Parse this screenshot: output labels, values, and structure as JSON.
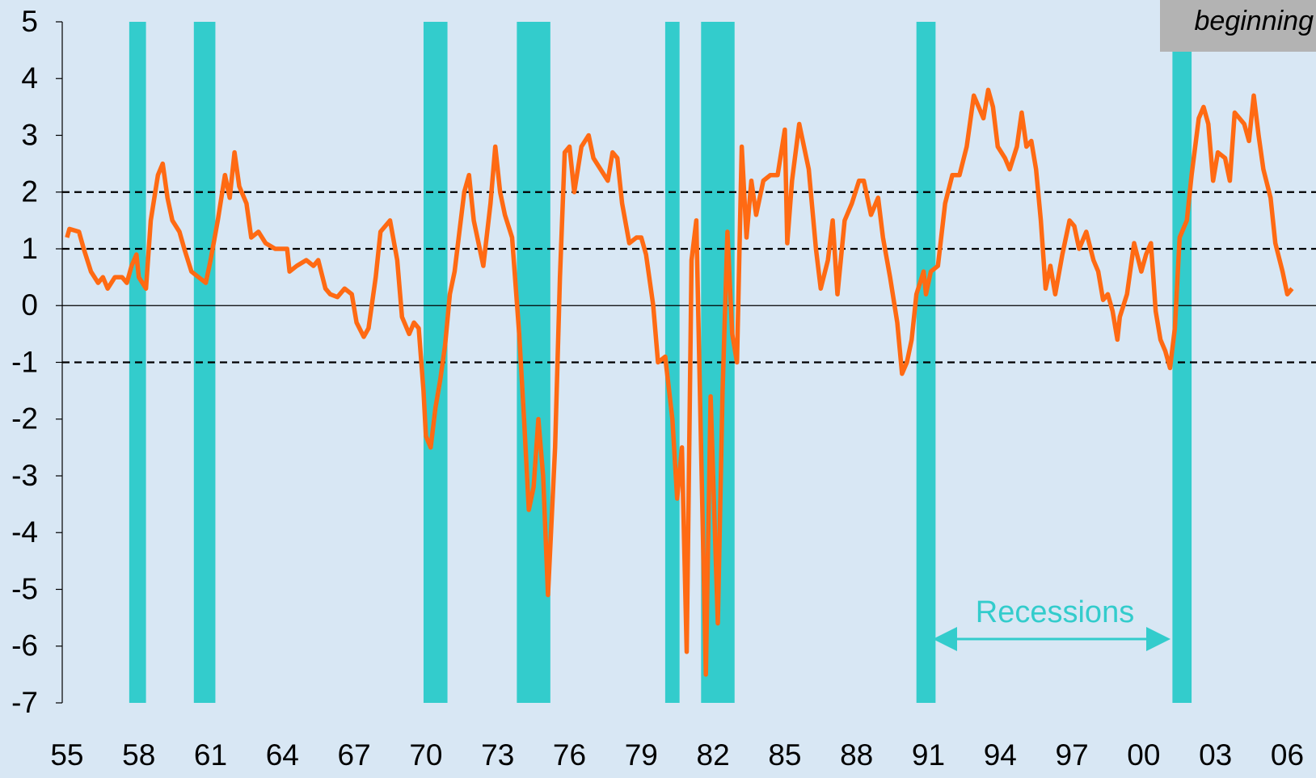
{
  "chart_data": {
    "type": "line",
    "annotations": [
      "beginning",
      "Recessions"
    ],
    "ylim": [
      -7,
      5
    ],
    "yticks": [
      -7,
      -6,
      -5,
      -4,
      -3,
      -2,
      -1,
      0,
      1,
      2,
      3,
      4,
      5
    ],
    "xlim": [
      1954.8,
      2007.2
    ],
    "xticks": [
      {
        "value": 1955,
        "label": "55"
      },
      {
        "value": 1958,
        "label": "58"
      },
      {
        "value": 1961,
        "label": "61"
      },
      {
        "value": 1964,
        "label": "64"
      },
      {
        "value": 1967,
        "label": "67"
      },
      {
        "value": 1970,
        "label": "70"
      },
      {
        "value": 1973,
        "label": "73"
      },
      {
        "value": 1976,
        "label": "76"
      },
      {
        "value": 1979,
        "label": "79"
      },
      {
        "value": 1982,
        "label": "82"
      },
      {
        "value": 1985,
        "label": "85"
      },
      {
        "value": 1988,
        "label": "88"
      },
      {
        "value": 1991,
        "label": "91"
      },
      {
        "value": 1994,
        "label": "94"
      },
      {
        "value": 1997,
        "label": "97"
      },
      {
        "value": 2000,
        "label": "00"
      },
      {
        "value": 2003,
        "label": "03"
      },
      {
        "value": 2006,
        "label": "06"
      }
    ],
    "reference_lines": [
      2,
      1,
      -1
    ],
    "recession_color": "#33cccc",
    "recessions": [
      [
        1957.6,
        1958.3
      ],
      [
        1960.3,
        1961.2
      ],
      [
        1969.9,
        1970.9
      ],
      [
        1973.8,
        1975.2
      ],
      [
        1980.0,
        1980.6
      ],
      [
        1981.5,
        1982.9
      ],
      [
        1990.5,
        1991.3
      ],
      [
        2001.2,
        2002.0
      ]
    ],
    "series": [
      {
        "color": "#ff6a13",
        "x": [
          1955.0,
          1955.1,
          1955.5,
          1955.7,
          1956.0,
          1956.3,
          1956.5,
          1956.7,
          1957.0,
          1957.3,
          1957.5,
          1957.7,
          1957.9,
          1958.0,
          1958.3,
          1958.5,
          1958.8,
          1959.0,
          1959.2,
          1959.4,
          1959.7,
          1959.9,
          1960.2,
          1960.5,
          1960.8,
          1961.0,
          1961.3,
          1961.6,
          1961.8,
          1962.0,
          1962.2,
          1962.5,
          1962.7,
          1963.0,
          1963.3,
          1963.7,
          1964.0,
          1964.2,
          1964.3,
          1964.6,
          1965.0,
          1965.3,
          1965.5,
          1965.8,
          1966.0,
          1966.3,
          1966.6,
          1966.9,
          1967.1,
          1967.4,
          1967.6,
          1967.9,
          1968.1,
          1968.3,
          1968.5,
          1968.8,
          1969.0,
          1969.3,
          1969.5,
          1969.7,
          1969.9,
          1970.0,
          1970.2,
          1970.4,
          1970.6,
          1970.8,
          1971.0,
          1971.2,
          1971.4,
          1971.6,
          1971.8,
          1972.0,
          1972.2,
          1972.4,
          1972.7,
          1972.9,
          1973.1,
          1973.3,
          1973.6,
          1973.9,
          1974.1,
          1974.3,
          1974.5,
          1974.7,
          1974.9,
          1975.1,
          1975.4,
          1975.6,
          1975.8,
          1976.0,
          1976.2,
          1976.5,
          1976.8,
          1977.0,
          1977.3,
          1977.6,
          1977.8,
          1978.0,
          1978.2,
          1978.5,
          1978.8,
          1979.0,
          1979.2,
          1979.5,
          1979.7,
          1980.0,
          1980.3,
          1980.5,
          1980.7,
          1980.9,
          1981.1,
          1981.3,
          1981.5,
          1981.7,
          1981.9,
          1982.2,
          1982.4,
          1982.6,
          1982.8,
          1983.0,
          1983.2,
          1983.4,
          1983.6,
          1983.8,
          1984.1,
          1984.4,
          1984.7,
          1985.0,
          1985.1,
          1985.3,
          1985.6,
          1985.8,
          1986.0,
          1986.3,
          1986.5,
          1986.8,
          1987.0,
          1987.2,
          1987.5,
          1987.8,
          1988.1,
          1988.3,
          1988.6,
          1988.9,
          1989.1,
          1989.4,
          1989.7,
          1989.9,
          1990.1,
          1990.3,
          1990.5,
          1990.8,
          1990.9,
          1991.1,
          1991.4,
          1991.7,
          1992.0,
          1992.3,
          1992.6,
          1992.9,
          1993.1,
          1993.3,
          1993.5,
          1993.7,
          1993.9,
          1994.2,
          1994.4,
          1994.7,
          1994.9,
          1995.1,
          1995.3,
          1995.5,
          1995.7,
          1995.9,
          1996.1,
          1996.3,
          1996.6,
          1996.9,
          1997.1,
          1997.3,
          1997.6,
          1997.9,
          1998.1,
          1998.3,
          1998.5,
          1998.7,
          1998.9,
          1999.0,
          1999.3,
          1999.6,
          1999.9,
          2000.1,
          2000.3,
          2000.5,
          2000.7,
          2000.9,
          2001.1,
          2001.3,
          2001.5,
          2001.8,
          2002.0,
          2002.3,
          2002.5,
          2002.7,
          2002.9,
          2003.1,
          2003.4,
          2003.6,
          2003.8,
          2004.0,
          2004.2,
          2004.4,
          2004.6,
          2004.8,
          2005.0,
          2005.3,
          2005.5,
          2005.8,
          2006.0,
          2006.2
        ],
        "values": [
          1.2,
          1.35,
          1.3,
          1.0,
          0.6,
          0.4,
          0.5,
          0.3,
          0.5,
          0.5,
          0.4,
          0.7,
          0.9,
          0.5,
          0.3,
          1.5,
          2.3,
          2.5,
          1.9,
          1.5,
          1.3,
          1.0,
          0.6,
          0.5,
          0.4,
          0.8,
          1.5,
          2.3,
          1.9,
          2.7,
          2.1,
          1.8,
          1.2,
          1.3,
          1.1,
          1.0,
          1.0,
          1.0,
          0.6,
          0.7,
          0.8,
          0.7,
          0.8,
          0.3,
          0.2,
          0.15,
          0.3,
          0.2,
          -0.3,
          -0.55,
          -0.4,
          0.5,
          1.3,
          1.4,
          1.5,
          0.8,
          -0.2,
          -0.5,
          -0.3,
          -0.4,
          -1.5,
          -2.3,
          -2.5,
          -1.8,
          -1.3,
          -0.7,
          0.2,
          0.6,
          1.3,
          2.0,
          2.3,
          1.5,
          1.1,
          0.7,
          1.8,
          2.8,
          2.0,
          1.6,
          1.2,
          -0.5,
          -2.0,
          -3.6,
          -3.2,
          -2.0,
          -3.0,
          -5.1,
          -2.5,
          0.5,
          2.7,
          2.8,
          2.0,
          2.8,
          3.0,
          2.6,
          2.4,
          2.2,
          2.7,
          2.6,
          1.8,
          1.1,
          1.2,
          1.2,
          0.9,
          0.0,
          -1.0,
          -0.9,
          -2.0,
          -3.4,
          -2.5,
          -6.1,
          0.8,
          1.5,
          -2.5,
          -6.5,
          -1.6,
          -5.6,
          -1.5,
          1.3,
          -0.5,
          -1.0,
          2.8,
          1.2,
          2.2,
          1.6,
          2.2,
          2.3,
          2.3,
          3.1,
          1.1,
          2.2,
          3.2,
          2.8,
          2.4,
          1.0,
          0.3,
          0.8,
          1.5,
          0.2,
          1.5,
          1.8,
          2.2,
          2.2,
          1.6,
          1.9,
          1.2,
          0.5,
          -0.3,
          -1.2,
          -1.0,
          -0.6,
          0.2,
          0.6,
          0.2,
          0.6,
          0.7,
          1.8,
          2.3,
          2.3,
          2.8,
          3.7,
          3.5,
          3.3,
          3.8,
          3.5,
          2.8,
          2.6,
          2.4,
          2.8,
          3.4,
          2.8,
          2.9,
          2.4,
          1.5,
          0.3,
          0.7,
          0.2,
          0.9,
          1.5,
          1.4,
          1.0,
          1.3,
          0.8,
          0.6,
          0.1,
          0.2,
          -0.1,
          -0.6,
          -0.2,
          0.2,
          1.1,
          0.6,
          0.9,
          1.1,
          -0.1,
          -0.6,
          -0.8,
          -1.1,
          -0.4,
          1.2,
          1.5,
          2.3,
          3.3,
          3.5,
          3.2,
          2.2,
          2.7,
          2.6,
          2.2,
          3.4,
          3.3,
          3.2,
          2.9,
          3.7,
          3.0,
          2.4,
          1.9,
          1.1,
          0.6,
          0.2,
          0.3
        ]
      }
    ]
  }
}
